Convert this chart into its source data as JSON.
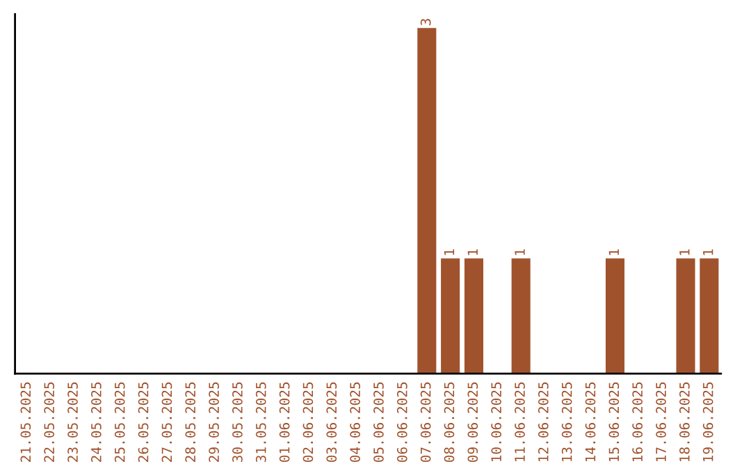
{
  "chart_data": {
    "type": "bar",
    "categories": [
      "21.05.2025",
      "22.05.2025",
      "23.05.2025",
      "24.05.2025",
      "25.05.2025",
      "26.05.2025",
      "27.05.2025",
      "28.05.2025",
      "29.05.2025",
      "30.05.2025",
      "31.05.2025",
      "01.06.2025",
      "02.06.2025",
      "03.06.2025",
      "04.06.2025",
      "05.06.2025",
      "06.06.2025",
      "07.06.2025",
      "08.06.2025",
      "09.06.2025",
      "10.06.2025",
      "11.06.2025",
      "12.06.2025",
      "13.06.2025",
      "14.06.2025",
      "15.06.2025",
      "16.06.2025",
      "17.06.2025",
      "18.06.2025",
      "19.06.2025"
    ],
    "values": [
      null,
      null,
      null,
      null,
      null,
      null,
      null,
      null,
      null,
      null,
      null,
      null,
      null,
      null,
      null,
      null,
      null,
      3,
      1,
      1,
      null,
      1,
      null,
      null,
      null,
      1,
      null,
      null,
      1,
      1
    ],
    "value_labels": [
      null,
      null,
      null,
      null,
      null,
      null,
      null,
      null,
      null,
      null,
      null,
      null,
      null,
      null,
      null,
      null,
      null,
      "3",
      "1",
      "1",
      null,
      "1",
      null,
      null,
      null,
      "1",
      null,
      null,
      "1",
      "1"
    ],
    "color": "#a0522d",
    "tick_labels": "x",
    "grid": false,
    "legend": false
  }
}
